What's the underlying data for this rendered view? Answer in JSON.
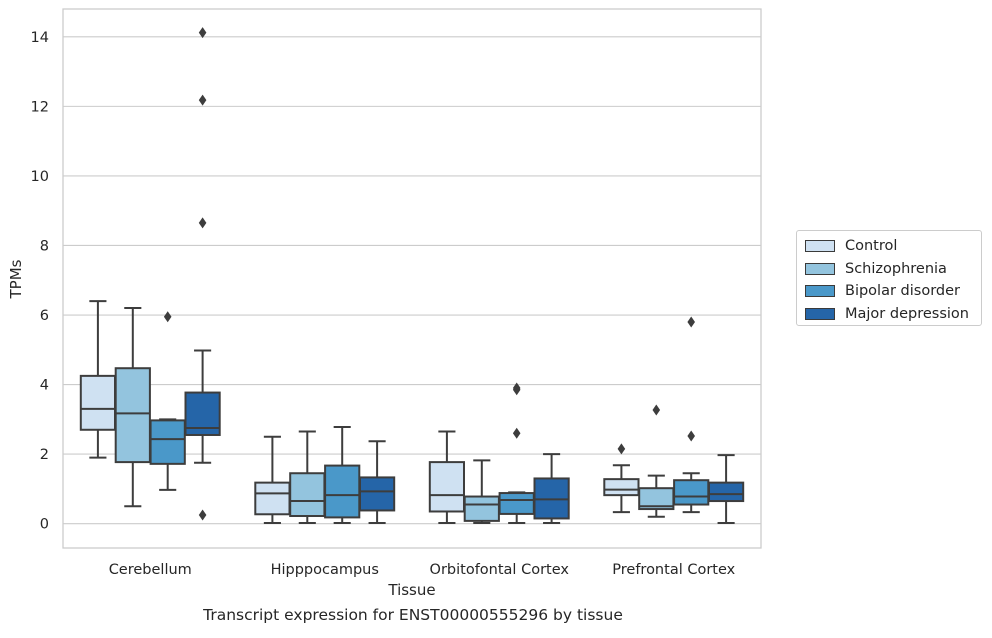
{
  "caption": "Transcript expression for ENST00000555296 by tissue",
  "chart_data": {
    "type": "box",
    "xlabel": "Tissue",
    "ylabel": "TPMs",
    "ylim": [
      -0.7,
      14.8
    ],
    "yticks": [
      0,
      2,
      4,
      6,
      8,
      10,
      12,
      14
    ],
    "grid": "horizontal",
    "legend_position": "outside-right",
    "categories": [
      "Cerebellum",
      "Hipppocampus",
      "Orbitofontal Cortex",
      "Prefrontal Cortex"
    ],
    "series": [
      {
        "name": "Control",
        "color": "#cfe1f2",
        "boxes": [
          {
            "min": 1.9,
            "q1": 2.7,
            "median": 3.3,
            "q3": 4.25,
            "max": 6.4,
            "outliers": []
          },
          {
            "min": 0.02,
            "q1": 0.27,
            "median": 0.87,
            "q3": 1.18,
            "max": 2.5,
            "outliers": []
          },
          {
            "min": 0.02,
            "q1": 0.35,
            "median": 0.82,
            "q3": 1.77,
            "max": 2.65,
            "outliers": []
          },
          {
            "min": 0.33,
            "q1": 0.82,
            "median": 0.98,
            "q3": 1.28,
            "max": 1.68,
            "outliers": [
              2.15
            ]
          }
        ]
      },
      {
        "name": "Schizophrenia",
        "color": "#93c4de",
        "boxes": [
          {
            "min": 0.5,
            "q1": 1.77,
            "median": 3.17,
            "q3": 4.47,
            "max": 6.2,
            "outliers": []
          },
          {
            "min": 0.02,
            "q1": 0.22,
            "median": 0.65,
            "q3": 1.45,
            "max": 2.65,
            "outliers": []
          },
          {
            "min": 0.02,
            "q1": 0.08,
            "median": 0.55,
            "q3": 0.78,
            "max": 1.82,
            "outliers": []
          },
          {
            "min": 0.2,
            "q1": 0.42,
            "median": 0.5,
            "q3": 1.02,
            "max": 1.38,
            "outliers": [
              3.27
            ]
          }
        ]
      },
      {
        "name": "Bipolar disorder",
        "color": "#4a98c9",
        "boxes": [
          {
            "min": 0.97,
            "q1": 1.72,
            "median": 2.43,
            "q3": 2.97,
            "max": 3.0,
            "outliers": [
              5.95
            ]
          },
          {
            "min": 0.02,
            "q1": 0.18,
            "median": 0.82,
            "q3": 1.67,
            "max": 2.78,
            "outliers": []
          },
          {
            "min": 0.02,
            "q1": 0.28,
            "median": 0.68,
            "q3": 0.88,
            "max": 0.9,
            "outliers": [
              2.6,
              3.85,
              3.9
            ]
          },
          {
            "min": 0.33,
            "q1": 0.55,
            "median": 0.78,
            "q3": 1.25,
            "max": 1.45,
            "outliers": [
              2.52,
              5.8
            ]
          }
        ]
      },
      {
        "name": "Major depression",
        "color": "#2565a8",
        "boxes": [
          {
            "min": 1.75,
            "q1": 2.55,
            "median": 2.75,
            "q3": 3.77,
            "max": 4.98,
            "outliers": [
              0.25,
              8.65,
              12.18,
              14.12
            ]
          },
          {
            "min": 0.02,
            "q1": 0.38,
            "median": 0.93,
            "q3": 1.33,
            "max": 2.37,
            "outliers": []
          },
          {
            "min": 0.02,
            "q1": 0.15,
            "median": 0.7,
            "q3": 1.3,
            "max": 2.0,
            "outliers": []
          },
          {
            "min": 0.02,
            "q1": 0.65,
            "median": 0.85,
            "q3": 1.18,
            "max": 1.97,
            "outliers": []
          }
        ]
      }
    ]
  }
}
